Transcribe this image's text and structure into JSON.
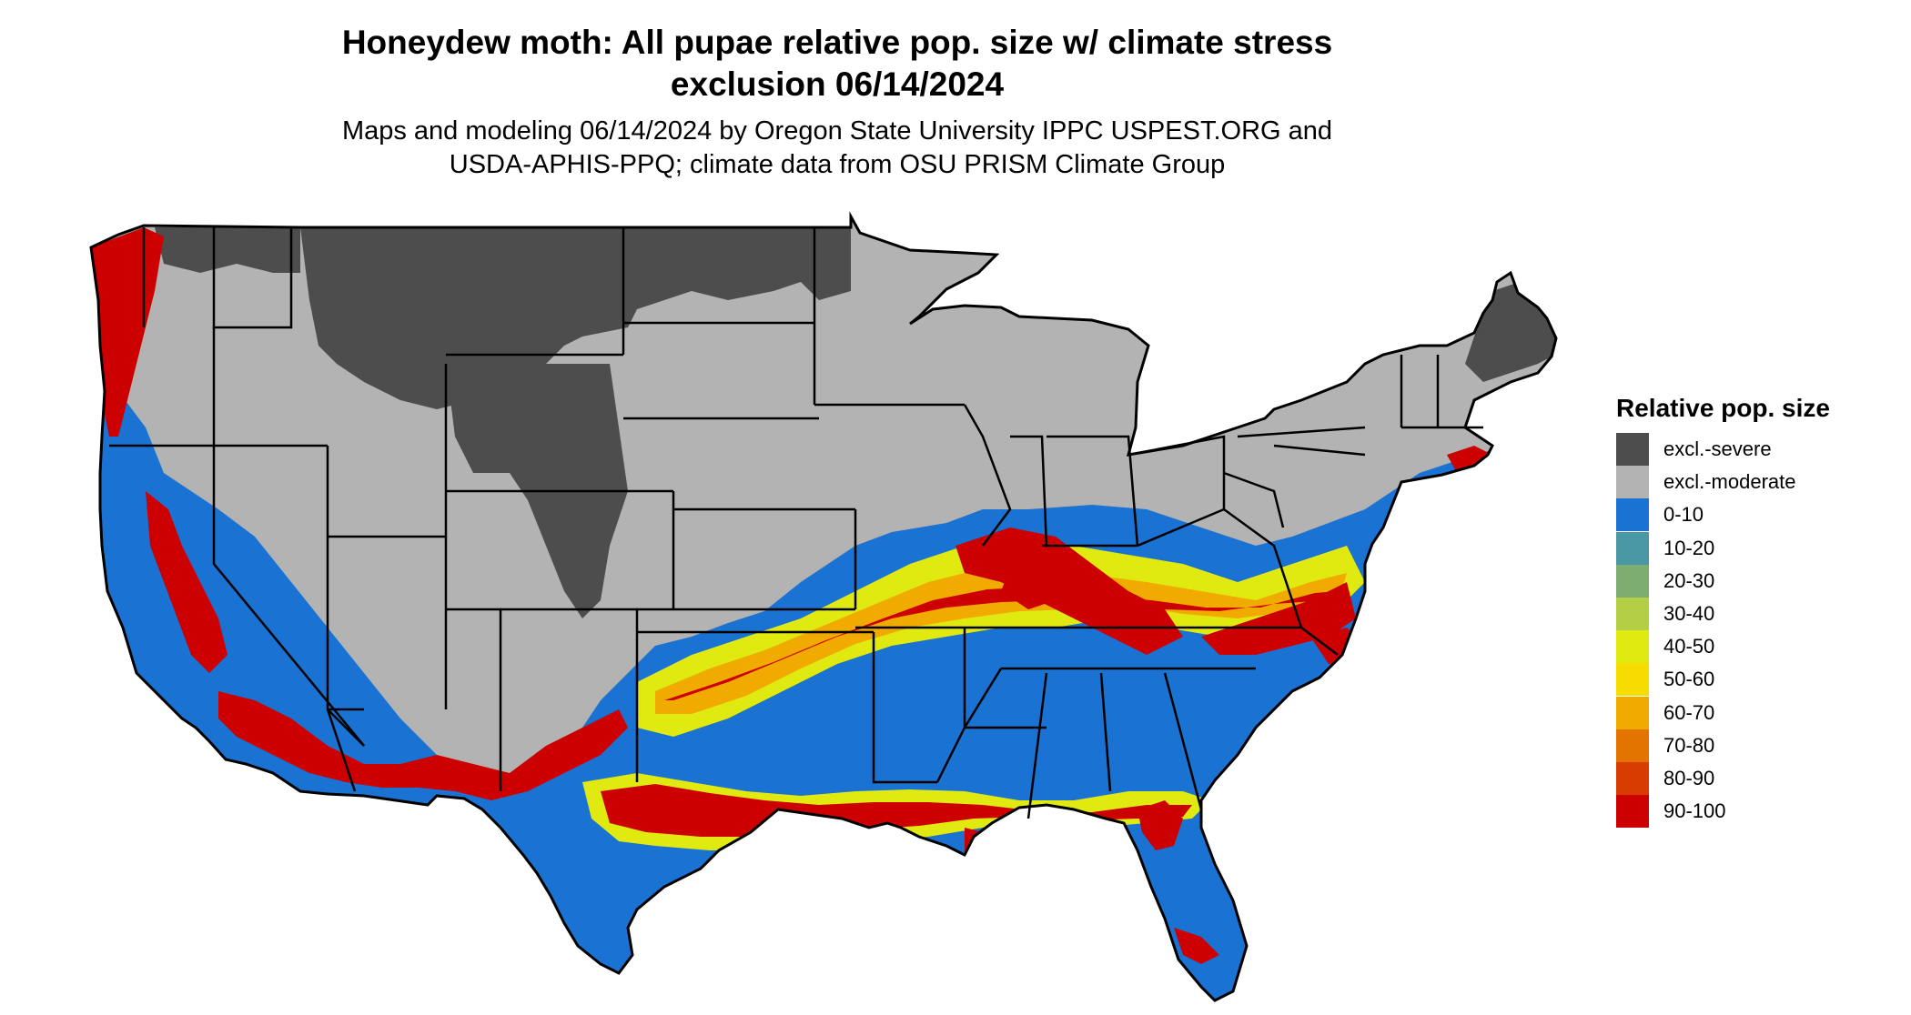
{
  "title": {
    "line1": "Honeydew moth: All pupae relative pop. size w/ climate stress",
    "line2": "exclusion 06/14/2024"
  },
  "subtitle": {
    "line1": "Maps and modeling 06/14/2024 by Oregon State University IPPC USPEST.ORG and",
    "line2": "USDA-APHIS-PPQ; climate data from OSU PRISM Climate Group"
  },
  "legend": {
    "title": "Relative pop. size",
    "items": [
      {
        "label": "excl.-severe",
        "color": "#4d4d4d"
      },
      {
        "label": "excl.-moderate",
        "color": "#b3b3b3"
      },
      {
        "label": "0-10",
        "color": "#1a72d2"
      },
      {
        "label": "10-20",
        "color": "#4a98a5"
      },
      {
        "label": "20-30",
        "color": "#7ead70"
      },
      {
        "label": "30-40",
        "color": "#b3cf45"
      },
      {
        "label": "40-50",
        "color": "#e0ea10"
      },
      {
        "label": "50-60",
        "color": "#f7dc00"
      },
      {
        "label": "60-70",
        "color": "#f0aa00"
      },
      {
        "label": "70-80",
        "color": "#e47400"
      },
      {
        "label": "80-90",
        "color": "#d83c00"
      },
      {
        "label": "90-100",
        "color": "#cc0000"
      }
    ]
  }
}
